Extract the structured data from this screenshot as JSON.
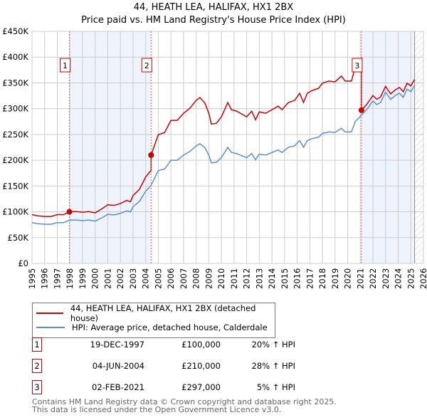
{
  "chart_data": {
    "type": "line",
    "title": "44, HEATH LEA, HALIFAX, HX1 2BX",
    "subtitle": "Price paid vs. HM Land Registry's House Price Index (HPI)",
    "xlim": [
      1995,
      2026
    ],
    "ylim": [
      0,
      450000
    ],
    "x_ticks": [
      "1995",
      "1996",
      "1997",
      "1998",
      "1999",
      "2000",
      "2001",
      "2002",
      "2003",
      "2004",
      "2005",
      "2006",
      "2007",
      "2008",
      "2009",
      "2010",
      "2011",
      "2012",
      "2013",
      "2014",
      "2015",
      "2016",
      "2017",
      "2018",
      "2019",
      "2020",
      "2021",
      "2022",
      "2023",
      "2024",
      "2025",
      "2026"
    ],
    "y_ticks": [
      {
        "v": 0,
        "label": "£0"
      },
      {
        "v": 50000,
        "label": "£50K"
      },
      {
        "v": 100000,
        "label": "£100K"
      },
      {
        "v": 150000,
        "label": "£150K"
      },
      {
        "v": 200000,
        "label": "£200K"
      },
      {
        "v": 250000,
        "label": "£250K"
      },
      {
        "v": 300000,
        "label": "£300K"
      },
      {
        "v": 350000,
        "label": "£350K"
      },
      {
        "v": 400000,
        "label": "£400K"
      },
      {
        "v": 450000,
        "label": "£450K"
      }
    ],
    "grid": true,
    "colors": {
      "property": "#cc0000",
      "hpi": "#5b8fd4",
      "shade": "#eef3fc"
    },
    "hpi_series": [
      [
        1995,
        79
      ],
      [
        1995.5,
        77
      ],
      [
        1996,
        76
      ],
      [
        1996.5,
        76
      ],
      [
        1997,
        79
      ],
      [
        1997.5,
        79
      ],
      [
        1998,
        84
      ],
      [
        1998.5,
        84
      ],
      [
        1999,
        83
      ],
      [
        1999.5,
        84
      ],
      [
        2000,
        82
      ],
      [
        2000.5,
        88
      ],
      [
        2001,
        95
      ],
      [
        2001.5,
        94
      ],
      [
        2002,
        97
      ],
      [
        2002.5,
        102
      ],
      [
        2002.8,
        100
      ],
      [
        2003,
        110
      ],
      [
        2003.5,
        120
      ],
      [
        2004,
        140
      ],
      [
        2004.4,
        150
      ],
      [
        2004.7,
        165
      ],
      [
        2005,
        180
      ],
      [
        2005.5,
        183
      ],
      [
        2006,
        200
      ],
      [
        2006.5,
        200
      ],
      [
        2007,
        210
      ],
      [
        2007.5,
        217
      ],
      [
        2008,
        228
      ],
      [
        2008.3,
        232
      ],
      [
        2008.7,
        224
      ],
      [
        2009,
        210
      ],
      [
        2009.2,
        195
      ],
      [
        2009.6,
        196
      ],
      [
        2010,
        205
      ],
      [
        2010.5,
        225
      ],
      [
        2010.8,
        215
      ],
      [
        2011.2,
        213
      ],
      [
        2011.7,
        208
      ],
      [
        2012,
        205
      ],
      [
        2012.4,
        213
      ],
      [
        2012.7,
        201
      ],
      [
        2013,
        212
      ],
      [
        2013.5,
        210
      ],
      [
        2014,
        215
      ],
      [
        2014.5,
        220
      ],
      [
        2014.8,
        215
      ],
      [
        2015.3,
        225
      ],
      [
        2015.8,
        228
      ],
      [
        2016.2,
        238
      ],
      [
        2016.5,
        225
      ],
      [
        2016.8,
        238
      ],
      [
        2017.2,
        242
      ],
      [
        2017.7,
        245
      ],
      [
        2018,
        252
      ],
      [
        2018.5,
        255
      ],
      [
        2019,
        254
      ],
      [
        2019.5,
        262
      ],
      [
        2019.8,
        255
      ],
      [
        2020.3,
        255
      ],
      [
        2020.6,
        275
      ],
      [
        2021,
        285
      ],
      [
        2021.5,
        298
      ],
      [
        2022,
        315
      ],
      [
        2022.3,
        308
      ],
      [
        2022.6,
        312
      ],
      [
        2023,
        332
      ],
      [
        2023.4,
        318
      ],
      [
        2023.8,
        326
      ],
      [
        2024.1,
        330
      ],
      [
        2024.4,
        322
      ],
      [
        2024.7,
        338
      ],
      [
        2025,
        333
      ],
      [
        2025.3,
        345
      ]
    ],
    "hpi_units": "thousand GBP",
    "sales": [
      {
        "n": "1",
        "x": 1997.96,
        "price": 100000,
        "date": "19-DEC-1997",
        "price_label": "£100,000",
        "hpi_label": "20% ↑ HPI"
      },
      {
        "n": "2",
        "x": 2004.43,
        "price": 210000,
        "date": "04-JUN-2004",
        "price_label": "£210,000",
        "hpi_label": "28% ↑ HPI"
      },
      {
        "n": "3",
        "x": 2021.09,
        "price": 297000,
        "date": "02-FEB-2021",
        "price_label": "£297,000",
        "hpi_label": "5% ↑ HPI"
      }
    ],
    "data_end": 2025.3
  },
  "legend": {
    "property": "44, HEATH LEA, HALIFAX, HX1 2BX (detached house)",
    "hpi": "HPI: Average price, detached house, Calderdale"
  },
  "footer": {
    "line1": "Contains HM Land Registry data © Crown copyright and database right 2025.",
    "line2": "This data is licensed under the Open Government Licence v3.0."
  }
}
